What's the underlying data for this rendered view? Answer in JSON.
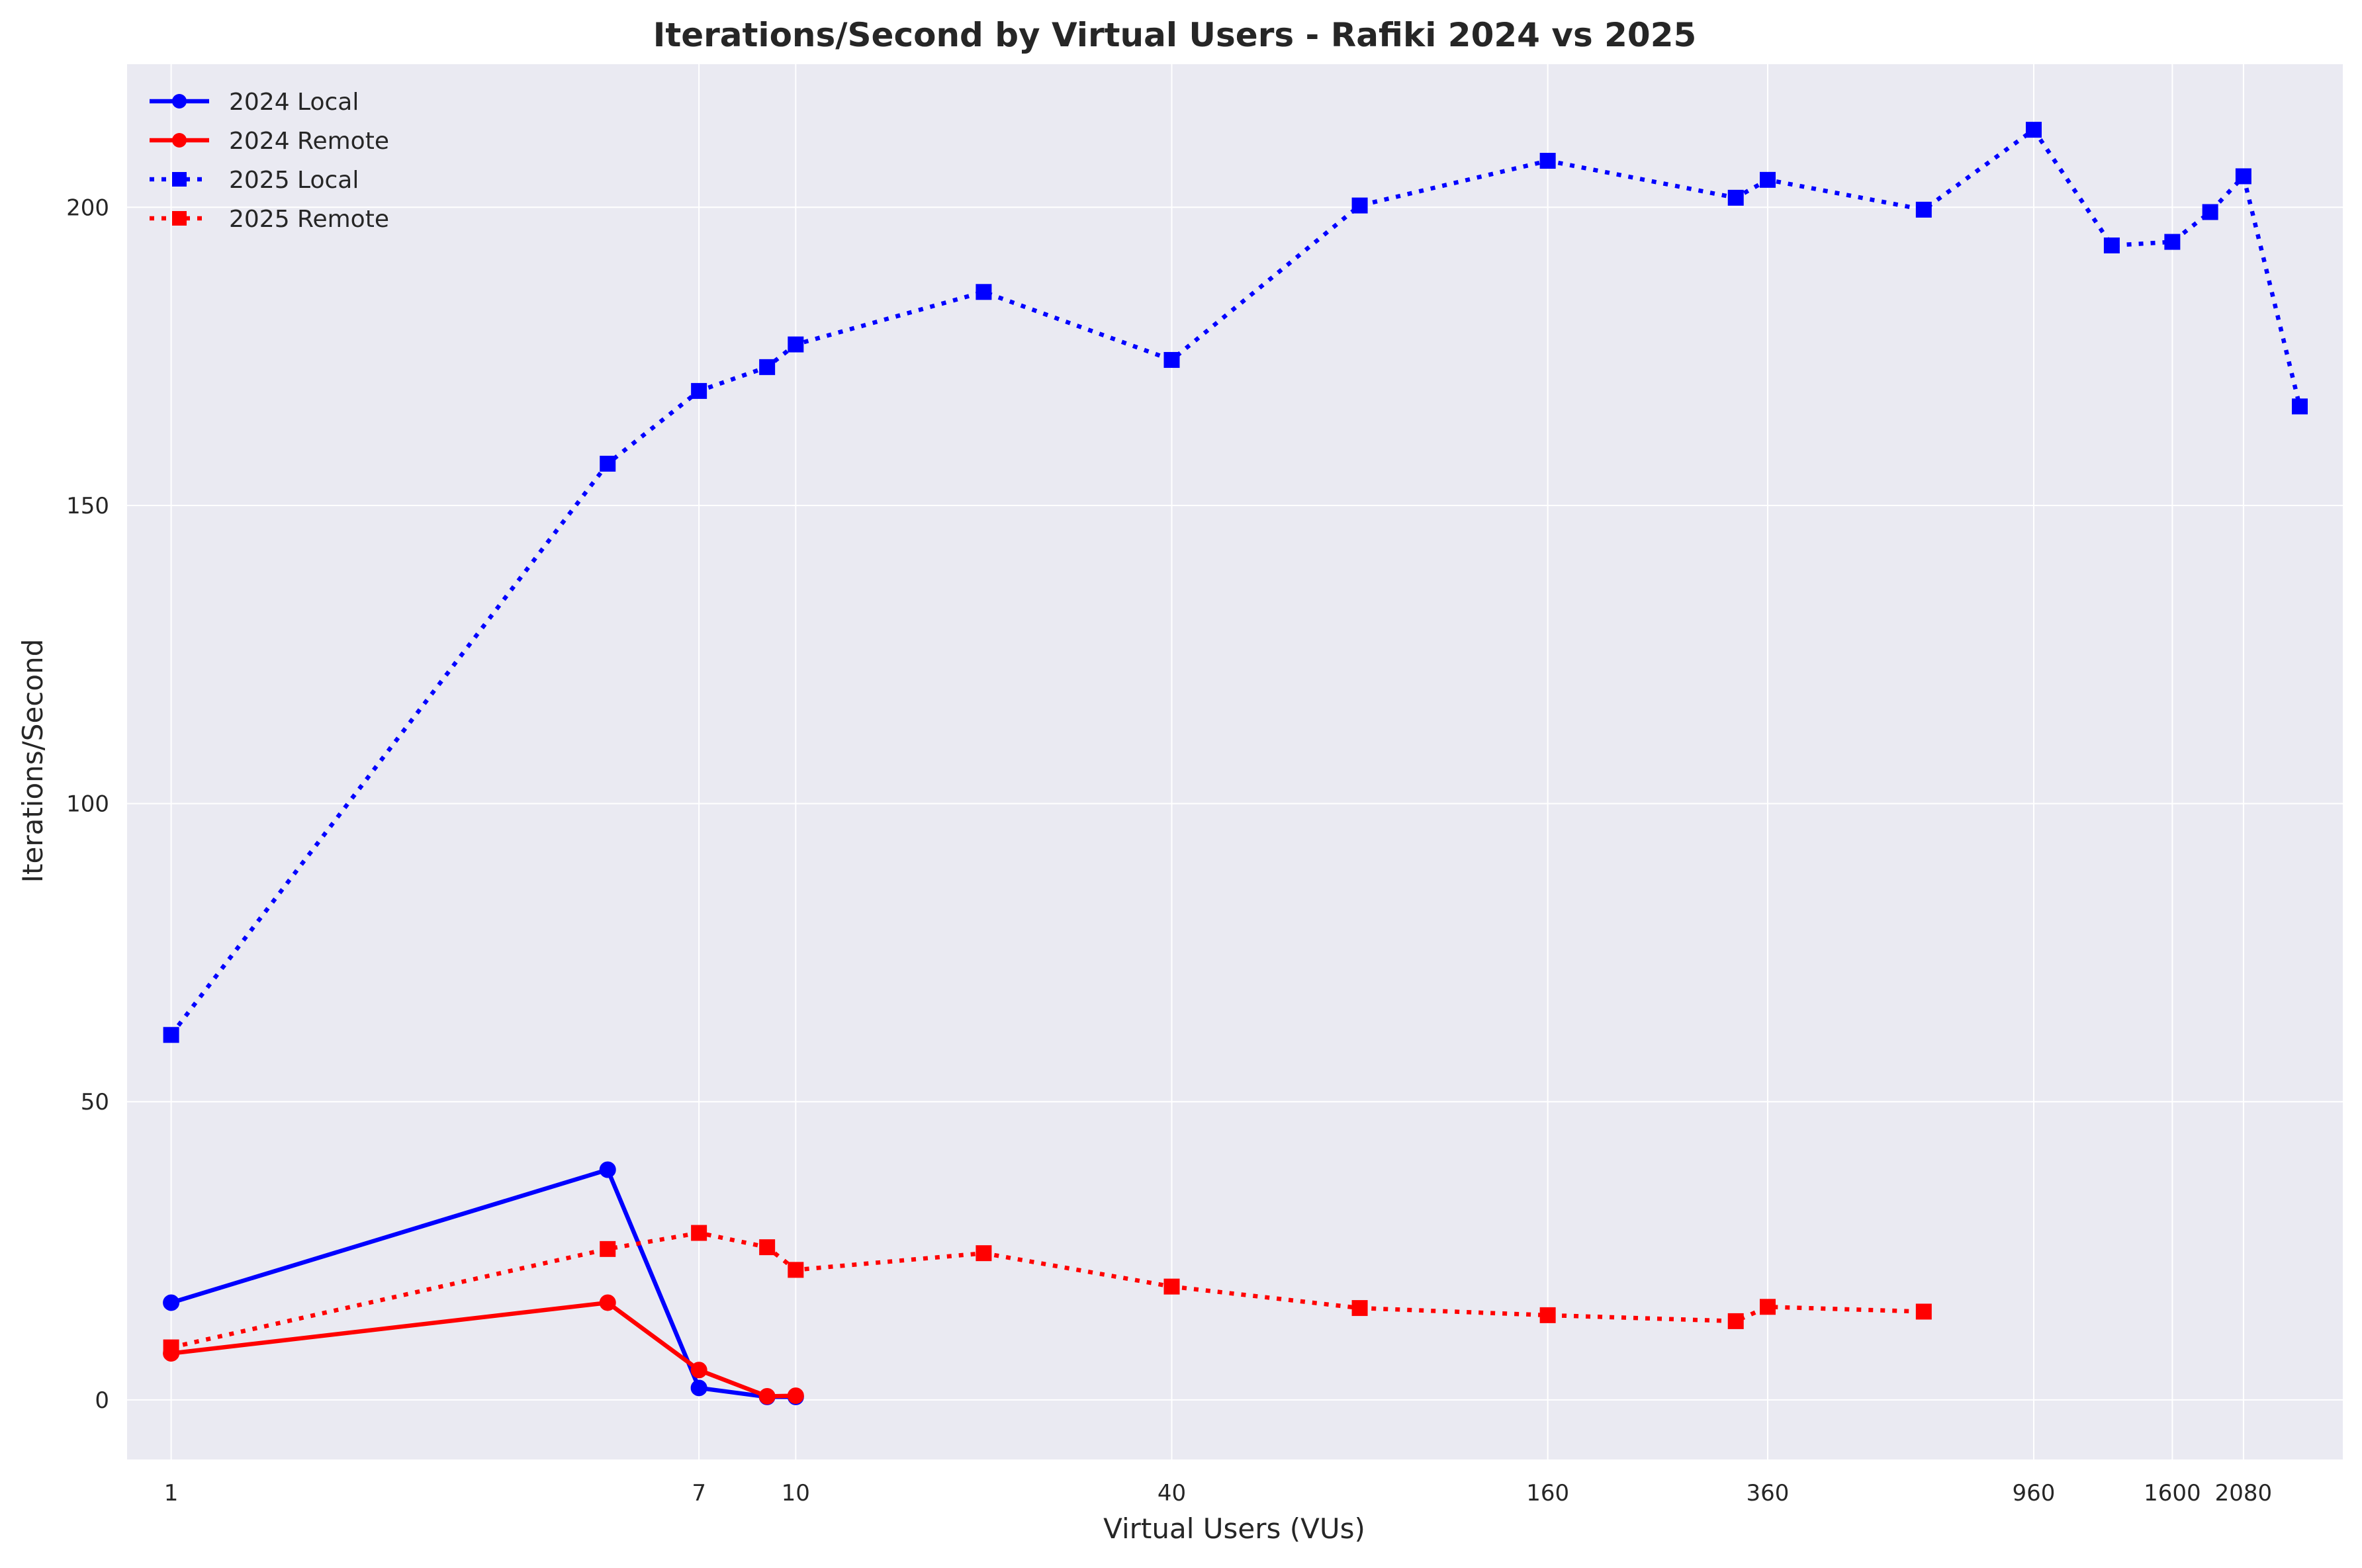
{
  "chart_data": {
    "type": "line",
    "title": "Iterations/Second by Virtual Users - Rafiki 2024 vs 2025",
    "xlabel": "Virtual Users (VUs)",
    "ylabel": "Iterations/Second",
    "x_scale": "log",
    "xlim": [
      0.85,
      3000
    ],
    "ylim": [
      -10,
      224
    ],
    "grid": true,
    "background": "#eaeaf2",
    "legend_position": "top-left",
    "x_ticks": [
      1,
      7,
      10,
      40,
      160,
      360,
      960,
      1600,
      2080
    ],
    "x_tick_labels": [
      "1",
      "7",
      "10",
      "40",
      "160",
      "360",
      "960",
      "1600",
      "2080"
    ],
    "y_ticks": [
      0,
      50,
      100,
      150,
      200
    ],
    "y_tick_labels": [
      "0",
      "50",
      "100",
      "150",
      "200"
    ],
    "series": [
      {
        "name": "2024 Local",
        "color": "#0000ff",
        "line_style": "solid",
        "marker": "circle",
        "x": [
          1,
          5,
          7,
          9,
          10
        ],
        "values": [
          16.3,
          38.6,
          2.0,
          0.5,
          0.5
        ]
      },
      {
        "name": "2024 Remote",
        "color": "#ff0000",
        "line_style": "solid",
        "marker": "circle",
        "x": [
          1,
          5,
          7,
          9,
          10
        ],
        "values": [
          7.8,
          16.3,
          5.0,
          0.6,
          0.7
        ]
      },
      {
        "name": "2025 Local",
        "color": "#0000ff",
        "line_style": "dotted",
        "marker": "square",
        "x": [
          1,
          5,
          7,
          9,
          10,
          20,
          40,
          80,
          160,
          320,
          360,
          640,
          960,
          1280,
          1600,
          1840,
          2080,
          2560
        ],
        "values": [
          61.2,
          157.0,
          169.2,
          173.2,
          177.0,
          185.8,
          174.4,
          200.3,
          207.8,
          201.6,
          204.6,
          199.6,
          213.0,
          193.6,
          194.2,
          199.2,
          205.2,
          166.6
        ]
      },
      {
        "name": "2025 Remote",
        "color": "#ff0000",
        "line_style": "dotted",
        "marker": "square",
        "x": [
          1,
          5,
          7,
          9,
          10,
          20,
          40,
          80,
          160,
          320,
          360,
          640
        ],
        "values": [
          8.8,
          25.3,
          28.0,
          25.6,
          21.8,
          24.6,
          19.0,
          15.4,
          14.2,
          13.2,
          15.6,
          14.8
        ]
      }
    ]
  }
}
